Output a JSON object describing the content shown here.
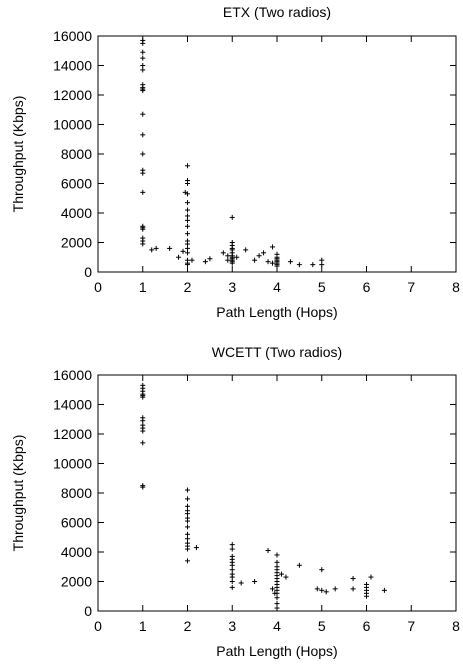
{
  "chart_data": [
    {
      "type": "scatter",
      "title": "ETX (Two radios)",
      "xlabel": "Path Length (Hops)",
      "ylabel": "Throughput (Kbps)",
      "xlim": [
        0,
        8
      ],
      "ylim": [
        0,
        16000
      ],
      "xticks": [
        "0",
        "1",
        "2",
        "3",
        "4",
        "5",
        "6",
        "7",
        "8"
      ],
      "yticks": [
        "0",
        "2000",
        "4000",
        "6000",
        "8000",
        "10000",
        "12000",
        "14000",
        "16000"
      ],
      "grid": false,
      "marker": "+",
      "x": [
        1,
        1,
        1,
        1,
        1,
        1,
        1,
        1,
        1,
        1,
        1,
        1,
        1,
        1,
        1,
        1,
        1,
        1,
        1,
        1,
        1,
        1,
        1.2,
        1.3,
        1.6,
        1.8,
        1.9,
        1.95,
        2,
        2,
        2,
        2,
        2,
        2,
        2,
        2,
        2,
        2,
        2,
        2,
        2,
        2,
        2,
        2,
        2,
        2.1,
        2.4,
        2.5,
        2.8,
        2.9,
        2.9,
        3,
        3,
        3,
        3,
        3,
        3,
        3,
        3,
        3,
        3,
        3,
        3,
        3.1,
        3.3,
        3.5,
        3.6,
        3.7,
        3.8,
        3.9,
        3.9,
        4,
        4,
        4,
        4,
        4,
        4,
        4,
        4,
        4.3,
        4.5,
        4.8,
        5,
        5
      ],
      "y": [
        15700,
        15500,
        14900,
        14500,
        14000,
        13700,
        12700,
        12500,
        12400,
        12300,
        10700,
        9300,
        8000,
        6900,
        6700,
        5400,
        3100,
        3000,
        2900,
        2300,
        2100,
        1900,
        1500,
        1600,
        1600,
        1000,
        1400,
        5400,
        7200,
        6200,
        6000,
        5300,
        4700,
        4200,
        3800,
        3500,
        3100,
        2600,
        2100,
        1900,
        1600,
        1300,
        800,
        600,
        500,
        800,
        700,
        900,
        1300,
        1100,
        800,
        3700,
        2000,
        1800,
        1600,
        1500,
        1300,
        1100,
        1000,
        900,
        800,
        700,
        600,
        1000,
        1500,
        800,
        1100,
        1300,
        700,
        600,
        1700,
        1200,
        1000,
        900,
        800,
        700,
        600,
        500,
        400,
        700,
        500,
        500,
        800,
        500
      ],
      "series": [
        {
          "name": "",
          "marker": "+"
        }
      ]
    },
    {
      "type": "scatter",
      "title": "WCETT (Two radios)",
      "xlabel": "Path Length (Hops)",
      "ylabel": "Throughput (Kbps)",
      "xlim": [
        0,
        8
      ],
      "ylim": [
        0,
        16000
      ],
      "xticks": [
        "0",
        "1",
        "2",
        "3",
        "4",
        "5",
        "6",
        "7",
        "8"
      ],
      "yticks": [
        "0",
        "2000",
        "4000",
        "6000",
        "8000",
        "10000",
        "12000",
        "14000",
        "16000"
      ],
      "grid": false,
      "marker": "+",
      "x": [
        1,
        1,
        1,
        1,
        1,
        1,
        1,
        1,
        1,
        1,
        1,
        1,
        1,
        1,
        2,
        2,
        2,
        2,
        2,
        2,
        2,
        2,
        2,
        2,
        2,
        2,
        2,
        2,
        2.2,
        3,
        3,
        3,
        3,
        3,
        3,
        3,
        3,
        3,
        3,
        3,
        3.2,
        3.5,
        3.8,
        3.9,
        3.95,
        4,
        4,
        4,
        4,
        4,
        4,
        4,
        4,
        4,
        4,
        4,
        4,
        4,
        4,
        4,
        4.1,
        4.2,
        4.5,
        4.9,
        5,
        5,
        5.1,
        5.3,
        5.7,
        5.7,
        6,
        6,
        6,
        6,
        6,
        6.1,
        6.4
      ],
      "y": [
        15300,
        15100,
        14900,
        14700,
        14600,
        14500,
        13100,
        12900,
        12600,
        12400,
        12200,
        11400,
        8400,
        8500,
        8200,
        7600,
        7100,
        6800,
        6600,
        6300,
        6100,
        5700,
        5200,
        4900,
        4600,
        4400,
        4200,
        3400,
        4300,
        4500,
        4200,
        3700,
        3500,
        3300,
        3100,
        2800,
        2500,
        2300,
        2000,
        1600,
        1900,
        2000,
        4100,
        1500,
        1200,
        3800,
        3300,
        3000,
        2800,
        2600,
        2400,
        2200,
        2000,
        1800,
        1600,
        1400,
        1200,
        900,
        500,
        200,
        2500,
        2300,
        3100,
        1500,
        2800,
        1400,
        1300,
        1500,
        2200,
        1500,
        1800,
        1600,
        1400,
        1200,
        1000,
        2300,
        1400
      ]
    }
  ]
}
